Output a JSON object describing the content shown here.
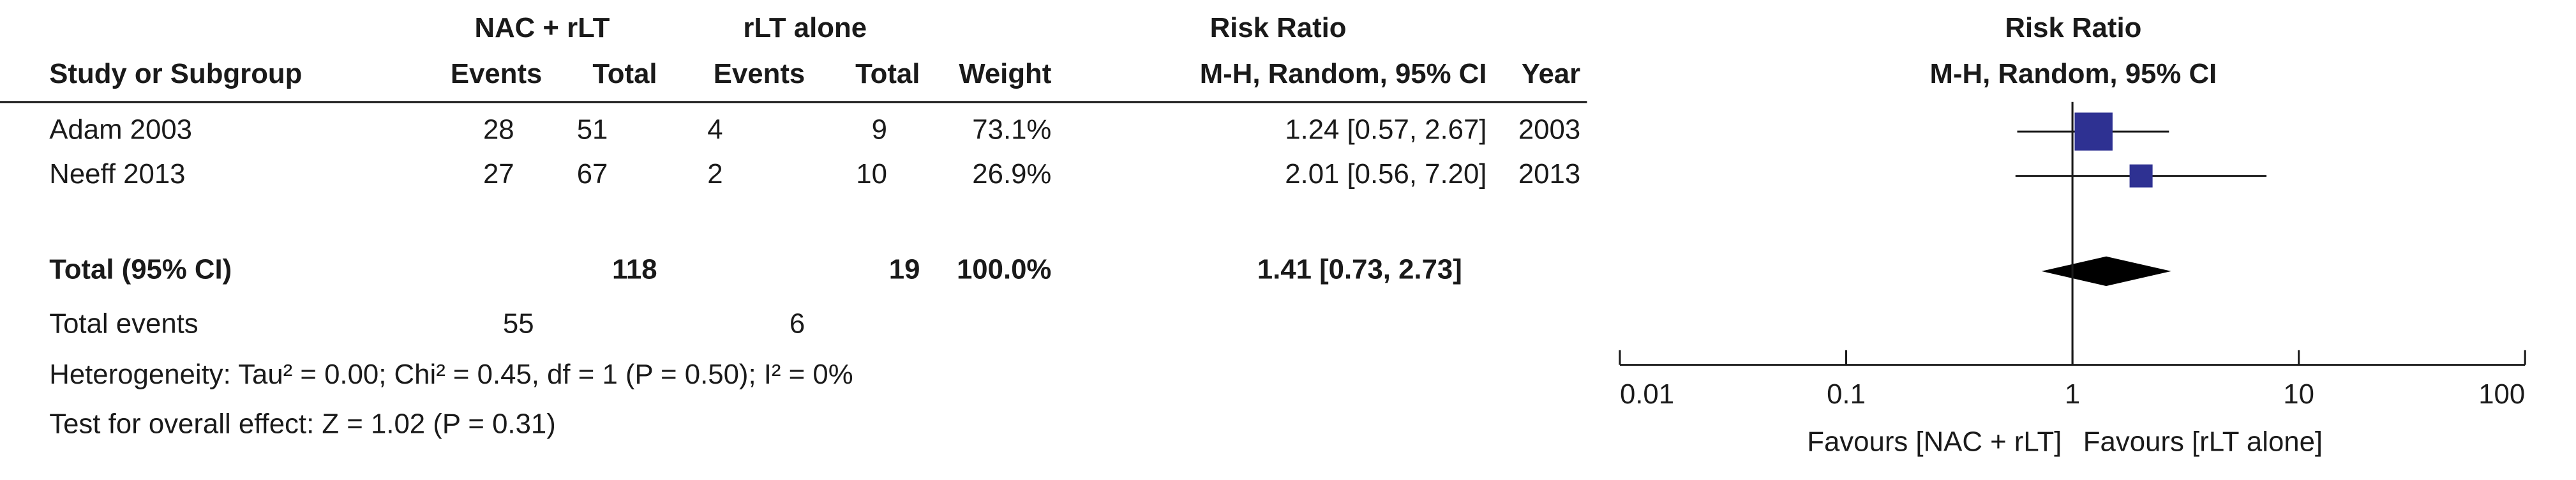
{
  "chart_data": {
    "type": "forest",
    "group_headers": [
      "NAC + rLT",
      "rLT alone"
    ],
    "title": "Risk Ratio",
    "method": "M-H, Random, 95% CI",
    "columns": [
      "Study or Subgroup",
      "Events",
      "Total",
      "Events",
      "Total",
      "Weight",
      "Year"
    ],
    "studies": [
      {
        "name": "Adam 2003",
        "events": [
          28,
          4
        ],
        "totals": [
          51,
          9
        ],
        "weight": 73.1,
        "weight_label": "73.1%",
        "rr": 1.24,
        "ci": [
          0.57,
          2.67
        ],
        "rr_label": "1.24 [0.57, 2.67]",
        "year": "2003"
      },
      {
        "name": "Neeff 2013",
        "events": [
          27,
          2
        ],
        "totals": [
          67,
          10
        ],
        "weight": 26.9,
        "weight_label": "26.9%",
        "rr": 2.01,
        "ci": [
          0.56,
          7.2
        ],
        "rr_label": "2.01 [0.56, 7.20]",
        "year": "2013"
      }
    ],
    "total": {
      "name": "Total (95% CI)",
      "totals": [
        118,
        19
      ],
      "weight": 100.0,
      "weight_label": "100.0%",
      "rr": 1.41,
      "ci": [
        0.73,
        2.73
      ],
      "rr_label": "1.41 [0.73, 2.73]"
    },
    "total_events": {
      "label": "Total events",
      "values": [
        55,
        6
      ]
    },
    "heterogeneity": "Heterogeneity: Tau² = 0.00; Chi² = 0.45, df = 1 (P = 0.50); I² = 0%",
    "overall_effect": "Test for overall effect: Z = 1.02 (P = 0.31)",
    "log_scale": true,
    "xlim": [
      0.01,
      100
    ],
    "xticks": [
      0.01,
      0.1,
      1,
      10,
      100
    ],
    "favours": [
      "Favours [NAC + rLT]",
      "Favours [rLT alone]"
    ],
    "color": "#2e3192"
  }
}
